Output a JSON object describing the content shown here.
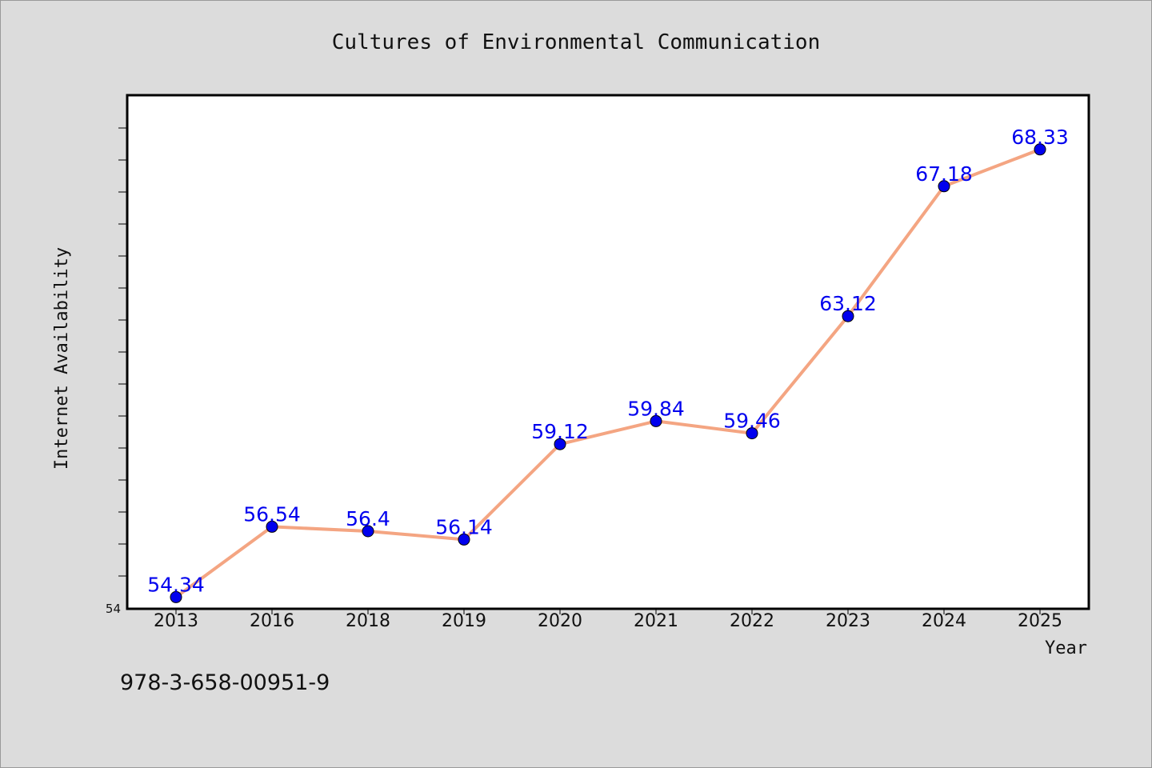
{
  "chart_data": {
    "type": "line",
    "title": "Cultures of Environmental Communication",
    "xlabel": "Year",
    "ylabel": "Internet Availability",
    "categories": [
      "2013",
      "2016",
      "2018",
      "2019",
      "2020",
      "2021",
      "2022",
      "2023",
      "2024",
      "2025"
    ],
    "series": [
      {
        "values": [
          54.34,
          56.54,
          56.4,
          56.14,
          59.12,
          59.84,
          59.46,
          63.12,
          67.18,
          68.33
        ],
        "data_labels": [
          "54.34",
          "56.54",
          "56.4",
          "56.14",
          "59.12",
          "59.84",
          "59.46",
          "63.12",
          "67.18",
          "68.33"
        ],
        "line_color": "#f4a582",
        "marker_color": "#0000ee"
      }
    ],
    "ylim": [
      54,
      70
    ],
    "y_tick_label": "54",
    "grid": false,
    "legend": "none"
  },
  "footer_text": "978-3-658-00951-9",
  "colors": {
    "background": "#dcdcdc",
    "plot_background": "#ffffff",
    "label_color": "#0000ee"
  }
}
